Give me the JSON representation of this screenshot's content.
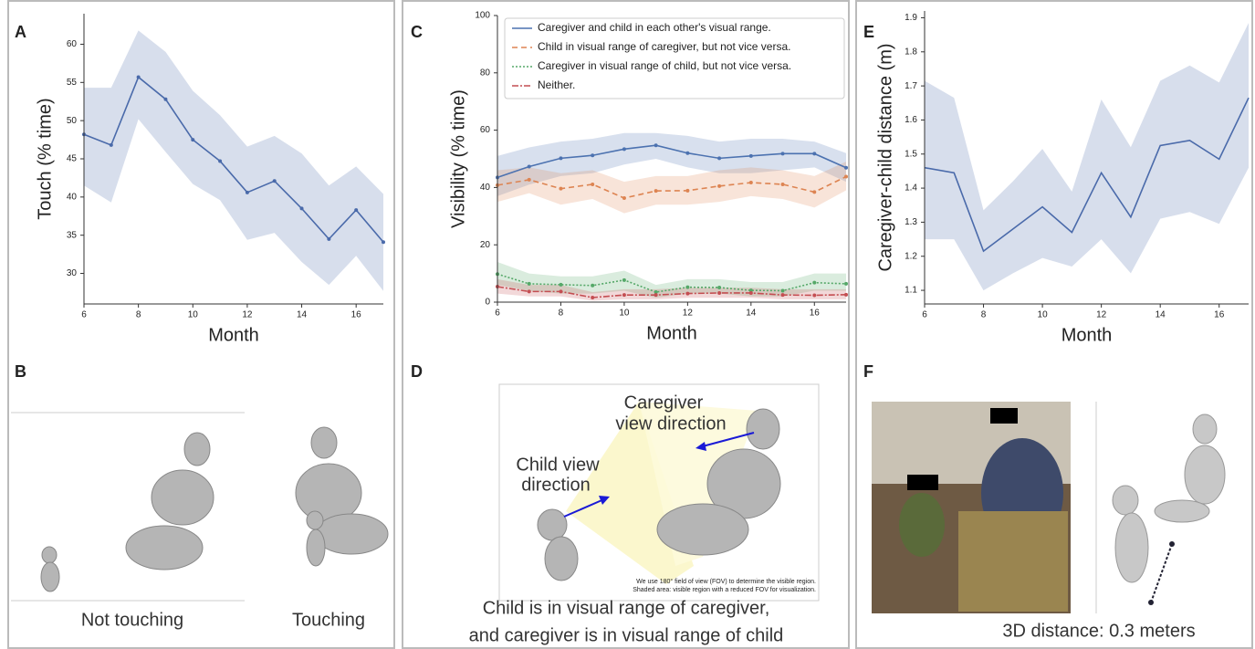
{
  "chart_data": [
    {
      "type": "line",
      "x": [
        6,
        7,
        8,
        9,
        10,
        11,
        12,
        13,
        14,
        15,
        16,
        17
      ],
      "xlim": [
        6,
        17
      ],
      "xticks": [
        6,
        8,
        10,
        12,
        14,
        16
      ],
      "ylim": [
        26,
        64
      ],
      "yticks": [
        30,
        35,
        40,
        45,
        50,
        55,
        60
      ],
      "xlabel": "Month",
      "ylabel": "Touch (% time)",
      "markers": true,
      "series": [
        {
          "color": "#4a6aaa",
          "style": "solid",
          "values": [
            48.2,
            46.8,
            55.7,
            52.8,
            47.5,
            44.7,
            40.6,
            42.1,
            38.5,
            34.5,
            38.3,
            34.1
          ],
          "upper": [
            54.3,
            54.3,
            61.8,
            59.0,
            53.9,
            50.7,
            46.6,
            48.0,
            45.7,
            41.5,
            44.0,
            40.4
          ],
          "lower": [
            41.5,
            39.3,
            50.2,
            45.9,
            41.7,
            39.6,
            34.4,
            35.3,
            31.5,
            28.5,
            32.3,
            27.7
          ]
        }
      ]
    },
    {
      "type": "line",
      "x": [
        6,
        7,
        8,
        9,
        10,
        11,
        12,
        13,
        14,
        15,
        16,
        17
      ],
      "xlim": [
        6,
        17
      ],
      "xticks": [
        6,
        8,
        10,
        12,
        14,
        16
      ],
      "ylim": [
        0,
        100
      ],
      "yticks": [
        0,
        20,
        40,
        60,
        80,
        100
      ],
      "xlabel": "Month",
      "ylabel": "Visibility (% time)",
      "markers": true,
      "legend": "upper right",
      "series": [
        {
          "name": "Caregiver and child in each other's visual range.",
          "color": "#4c72b0",
          "style": "solid",
          "values": [
            43.5,
            47.3,
            50.2,
            51.2,
            53.4,
            54.7,
            52.0,
            50.2,
            51.0,
            51.8,
            51.8,
            46.9
          ],
          "upper": [
            51,
            54,
            56,
            57,
            59,
            59,
            58,
            56,
            57,
            57,
            56,
            52
          ],
          "lower": [
            37,
            41,
            44,
            45,
            48,
            50,
            47,
            45,
            45,
            46,
            47,
            42
          ]
        },
        {
          "name": "Child in visual range of caregiver, but not vice versa.",
          "color": "#dd8452",
          "style": "dashed",
          "values": [
            40.8,
            42.7,
            39.6,
            41.1,
            36.3,
            38.8,
            38.9,
            40.5,
            41.7,
            41.1,
            38.4,
            43.8
          ],
          "upper": [
            46,
            47,
            45,
            46,
            42,
            44,
            44,
            46,
            47,
            46,
            44,
            49
          ],
          "lower": [
            35,
            38,
            34,
            36,
            31,
            34,
            34,
            35,
            37,
            36,
            33,
            39
          ]
        },
        {
          "name": "Caregiver in visual range of child, but not vice versa.",
          "color": "#55a868",
          "style": "dotted",
          "values": [
            9.8,
            6.4,
            6.1,
            5.8,
            7.7,
            3.5,
            5.2,
            5.1,
            4.1,
            4.0,
            6.8,
            6.4
          ],
          "upper": [
            14,
            10,
            9,
            9,
            11,
            6,
            8,
            8,
            7,
            7,
            10,
            10
          ],
          "lower": [
            6,
            4,
            3,
            3,
            4,
            1.5,
            3,
            3,
            2,
            2,
            4,
            4
          ]
        },
        {
          "name": "Neither.",
          "color": "#c44e52",
          "style": "dashdot",
          "values": [
            5.4,
            3.7,
            3.7,
            1.6,
            2.5,
            2.5,
            3.0,
            3.2,
            3.2,
            2.5,
            2.4,
            2.6
          ],
          "upper": [
            8,
            6,
            6,
            3.5,
            4.5,
            4.5,
            5,
            5,
            5,
            4.5,
            4.5,
            4.5
          ],
          "lower": [
            3,
            2,
            2,
            0.5,
            1,
            1,
            1.5,
            1.5,
            1.5,
            1,
            1,
            1
          ]
        }
      ]
    },
    {
      "type": "line",
      "x": [
        6,
        7,
        8,
        9,
        10,
        11,
        12,
        13,
        14,
        15,
        16,
        17
      ],
      "xlim": [
        6,
        17
      ],
      "xticks": [
        6,
        8,
        10,
        12,
        14,
        16
      ],
      "ylim": [
        1.06,
        1.92
      ],
      "yticks": [
        1.1,
        1.2,
        1.3,
        1.4,
        1.5,
        1.6,
        1.7,
        1.8,
        1.9
      ],
      "xlabel": "Month",
      "ylabel": "Caregiver-child distance (m)",
      "markers": false,
      "series": [
        {
          "color": "#4a6aaa",
          "style": "solid",
          "values": [
            1.46,
            1.445,
            1.215,
            1.28,
            1.345,
            1.27,
            1.445,
            1.315,
            1.525,
            1.54,
            1.485,
            1.665
          ],
          "upper": [
            1.715,
            1.665,
            1.335,
            1.42,
            1.515,
            1.39,
            1.66,
            1.52,
            1.715,
            1.76,
            1.71,
            1.885
          ],
          "lower": [
            1.25,
            1.25,
            1.1,
            1.15,
            1.195,
            1.17,
            1.25,
            1.15,
            1.31,
            1.33,
            1.295,
            1.46
          ]
        }
      ]
    }
  ],
  "panel_labels": [
    "A",
    "B",
    "C",
    "D",
    "E",
    "F"
  ],
  "panel_b": {
    "left_caption": "Not touching",
    "right_caption": "Touching"
  },
  "panel_d": {
    "caregiver_label": [
      "Caregiver",
      "view direction"
    ],
    "child_label": [
      "Child view",
      "direction"
    ],
    "note": [
      "We use 180° field of view (FOV) to determine the visible region.",
      "Shaded area: visible region with a reduced FOV for visualization."
    ],
    "caption": [
      "Child is in visual range of caregiver,",
      "and caregiver is in visual range of child"
    ]
  },
  "panel_f": {
    "caption": "3D distance: 0.3 meters"
  }
}
